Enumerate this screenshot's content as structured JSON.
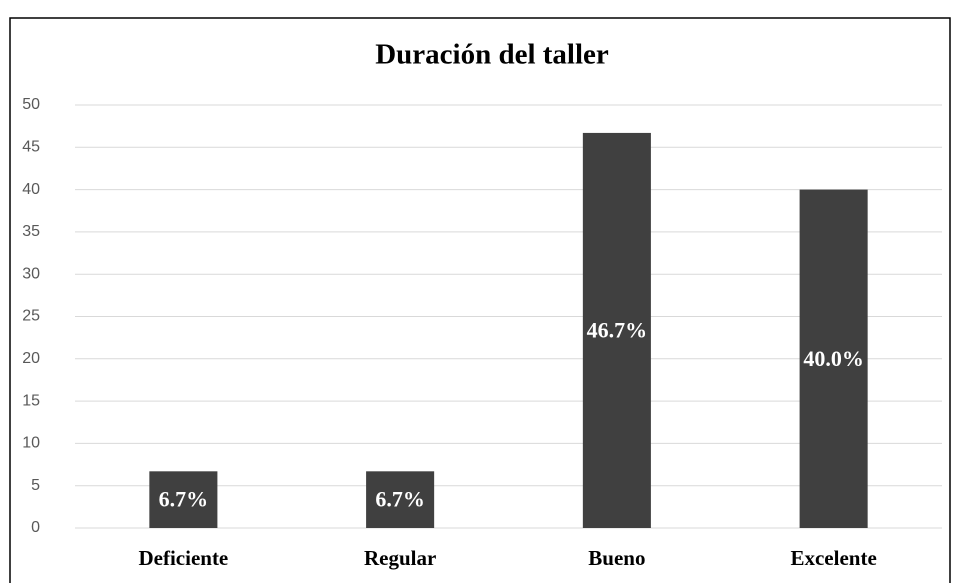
{
  "chart_data": {
    "type": "bar",
    "title": "Duración del taller",
    "categories": [
      "Deficiente",
      "Regular",
      "Bueno",
      "Excelente"
    ],
    "values": [
      6.7,
      6.7,
      46.7,
      40.0
    ],
    "value_labels": [
      "6.7%",
      "6.7%",
      "46.7%",
      "40.0%"
    ],
    "color": "#404040",
    "ylim": [
      0,
      50
    ],
    "yticks": [
      0,
      5,
      10,
      15,
      20,
      25,
      30,
      35,
      40,
      45,
      50
    ],
    "grid": true
  }
}
